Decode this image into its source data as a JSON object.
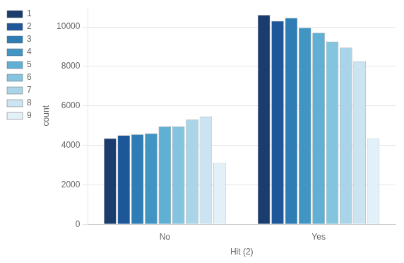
{
  "chart_data": {
    "type": "bar",
    "xlabel": "Hit (2)",
    "ylabel": "count",
    "categories": [
      "No",
      "Yes"
    ],
    "series": [
      {
        "name": "1",
        "color": "#1b3d6e",
        "values": [
          4350,
          10600
        ]
      },
      {
        "name": "2",
        "color": "#1e5799",
        "values": [
          4500,
          10300
        ]
      },
      {
        "name": "3",
        "color": "#2e7db5",
        "values": [
          4550,
          10450
        ]
      },
      {
        "name": "4",
        "color": "#4295c3",
        "values": [
          4600,
          9950
        ]
      },
      {
        "name": "5",
        "color": "#60afd4",
        "values": [
          4950,
          9700
        ]
      },
      {
        "name": "6",
        "color": "#84c4de",
        "values": [
          4950,
          9250
        ]
      },
      {
        "name": "7",
        "color": "#aad5e8",
        "values": [
          5300,
          8950
        ]
      },
      {
        "name": "8",
        "color": "#cce4f2",
        "values": [
          5450,
          8250
        ]
      },
      {
        "name": "9",
        "color": "#e2f0f8",
        "values": [
          3100,
          4350
        ]
      }
    ],
    "ylim": [
      0,
      11000
    ],
    "yticks": [
      0,
      2000,
      4000,
      6000,
      8000,
      10000
    ],
    "grid": true,
    "legend": "upper left"
  }
}
